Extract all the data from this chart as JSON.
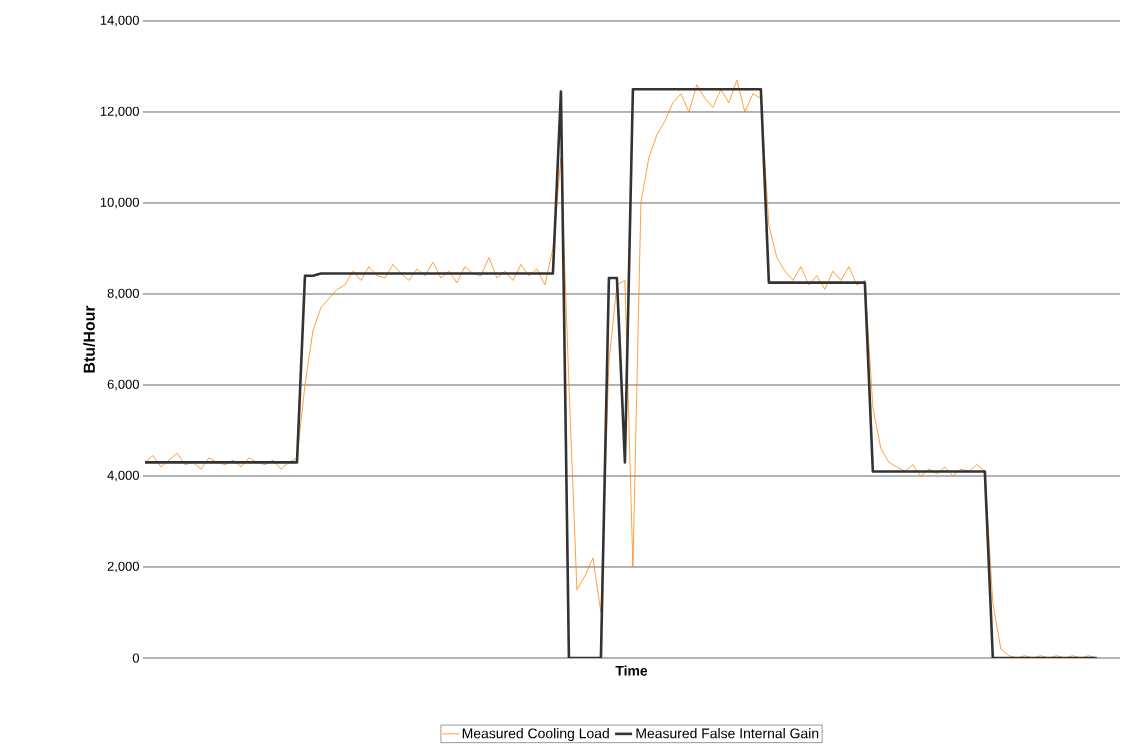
{
  "chart_data": {
    "type": "line",
    "xlabel": "Time",
    "ylabel": "Btu/Hour",
    "categories": [
      null,
      null,
      null,
      null,
      null,
      null,
      null,
      null,
      null,
      null,
      null,
      null,
      null,
      null,
      null,
      null,
      null,
      null,
      null,
      null,
      null,
      null,
      null,
      null,
      null,
      null,
      null,
      null,
      null,
      null,
      null,
      null,
      null,
      null,
      null,
      null,
      null,
      null,
      null,
      null,
      null,
      null,
      null,
      null,
      null,
      null,
      null,
      null,
      null,
      null,
      null,
      null,
      null,
      null,
      null,
      null,
      null,
      null,
      null,
      null,
      null,
      null,
      null,
      null,
      null,
      null,
      null,
      null,
      null,
      null,
      null,
      null,
      null,
      null,
      null,
      null,
      null,
      null,
      null,
      null,
      null,
      null,
      null,
      null,
      null,
      null,
      null,
      null,
      null,
      null,
      null,
      null,
      null,
      null,
      null,
      null,
      null,
      null,
      null,
      null,
      null,
      null,
      null,
      null,
      null,
      null,
      null,
      null,
      null,
      null,
      null,
      null,
      null,
      null,
      null,
      null,
      null,
      null,
      null,
      null
    ],
    "series": [
      {
        "name": "Measured Cooling Load",
        "color": "#ff8000",
        "values": [
          4300,
          4450,
          4200,
          4350,
          4500,
          4250,
          4300,
          4150,
          4400,
          4300,
          4250,
          4350,
          4200,
          4400,
          4300,
          4250,
          4350,
          4150,
          4300,
          4400,
          6000,
          7200,
          7700,
          7900,
          8100,
          8200,
          8500,
          8300,
          8600,
          8400,
          8350,
          8650,
          8450,
          8300,
          8550,
          8400,
          8700,
          8350,
          8500,
          8250,
          8600,
          8450,
          8400,
          8800,
          8350,
          8500,
          8300,
          8650,
          8400,
          8550,
          8200,
          9000,
          11000,
          6000,
          1500,
          1800,
          2200,
          1000,
          6500,
          8200,
          8300,
          2000,
          10000,
          11000,
          11500,
          11800,
          12200,
          12400,
          12000,
          12600,
          12300,
          12100,
          12500,
          12200,
          12700,
          12000,
          12400,
          12300,
          9500,
          8800,
          8500,
          8300,
          8600,
          8200,
          8400,
          8100,
          8500,
          8300,
          8600,
          8200,
          8300,
          5500,
          4600,
          4300,
          4200,
          4100,
          4250,
          4000,
          4150,
          4050,
          4200,
          4000,
          4150,
          4100,
          4250,
          4100,
          1200,
          200,
          50,
          0,
          50,
          0,
          50,
          0,
          50,
          0,
          50,
          0,
          50,
          0
        ]
      },
      {
        "name": "Measured False Internal Gain",
        "color": "#333333",
        "values": [
          4300,
          4300,
          4300,
          4300,
          4300,
          4300,
          4300,
          4300,
          4300,
          4300,
          4300,
          4300,
          4300,
          4300,
          4300,
          4300,
          4300,
          4300,
          4300,
          4300,
          8400,
          8400,
          8450,
          8450,
          8450,
          8450,
          8450,
          8450,
          8450,
          8450,
          8450,
          8450,
          8450,
          8450,
          8450,
          8450,
          8450,
          8450,
          8450,
          8450,
          8450,
          8450,
          8450,
          8450,
          8450,
          8450,
          8450,
          8450,
          8450,
          8450,
          8450,
          8450,
          12450,
          0,
          0,
          0,
          0,
          0,
          8350,
          8350,
          4300,
          12500,
          12500,
          12500,
          12500,
          12500,
          12500,
          12500,
          12500,
          12500,
          12500,
          12500,
          12500,
          12500,
          12500,
          12500,
          12500,
          12500,
          8250,
          8250,
          8250,
          8250,
          8250,
          8250,
          8250,
          8250,
          8250,
          8250,
          8250,
          8250,
          8250,
          4100,
          4100,
          4100,
          4100,
          4100,
          4100,
          4100,
          4100,
          4100,
          4100,
          4100,
          4100,
          4100,
          4100,
          4100,
          0,
          0,
          0,
          0,
          0,
          0,
          0,
          0,
          0,
          0,
          0,
          0,
          0,
          0
        ]
      }
    ],
    "ylim": [
      0,
      14000
    ],
    "yticks": [
      {
        "value": 0,
        "label": "0"
      },
      {
        "value": 2000,
        "label": "2,000"
      },
      {
        "value": 4000,
        "label": "4,000"
      },
      {
        "value": 6000,
        "label": "6,000"
      },
      {
        "value": 8000,
        "label": "8,000"
      },
      {
        "value": 10000,
        "label": "10,000"
      },
      {
        "value": 12000,
        "label": "12,000"
      },
      {
        "value": 14000,
        "label": "14,000"
      }
    ],
    "grid": "y",
    "legend": "bottom",
    "tick_labels": "y"
  }
}
